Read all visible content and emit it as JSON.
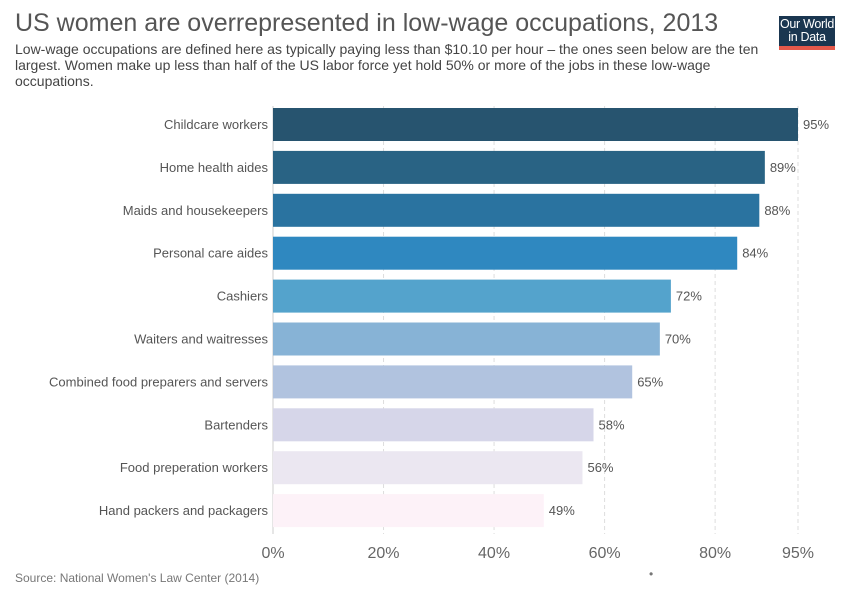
{
  "header": {
    "title": "US women are overrepresented in low-wage occupations, 2013",
    "subtitle": "Low-wage occupations are defined here as typically paying less than $10.10 per hour – the ones seen below are the ten largest. Women make up less than half of the US labor force yet hold 50% or more of the jobs in these low-wage occupations."
  },
  "logo": {
    "line1": "Our World",
    "line2": "in Data"
  },
  "footer": {
    "source": "Source: National Women's Law Center (2014)",
    "dot": "•"
  },
  "chart_data": {
    "type": "bar",
    "orientation": "horizontal",
    "categories": [
      "Childcare workers",
      "Home health aides",
      "Maids and housekeepers",
      "Personal care aides",
      "Cashiers",
      "Waiters and waitresses",
      "Combined food preparers and servers",
      "Bartenders",
      "Food preperation workers",
      "Hand packers and packagers"
    ],
    "values": [
      95,
      89,
      88,
      84,
      72,
      70,
      65,
      58,
      56,
      49
    ],
    "value_labels": [
      "95%",
      "89%",
      "88%",
      "84%",
      "72%",
      "70%",
      "65%",
      "58%",
      "56%",
      "49%"
    ],
    "colors": [
      "#27546f",
      "#296384",
      "#2a73a0",
      "#2f88c0",
      "#54a3cc",
      "#87b3d6",
      "#b1c3df",
      "#d6d6e9",
      "#ebe7f1",
      "#fdf2f8"
    ],
    "xlim": [
      0,
      95
    ],
    "x_ticks": [
      0,
      20,
      40,
      60,
      80,
      95
    ],
    "x_tick_labels": [
      "0%",
      "20%",
      "40%",
      "60%",
      "80%",
      "95%"
    ],
    "grid": "vertical-dashed",
    "legend": "none"
  }
}
